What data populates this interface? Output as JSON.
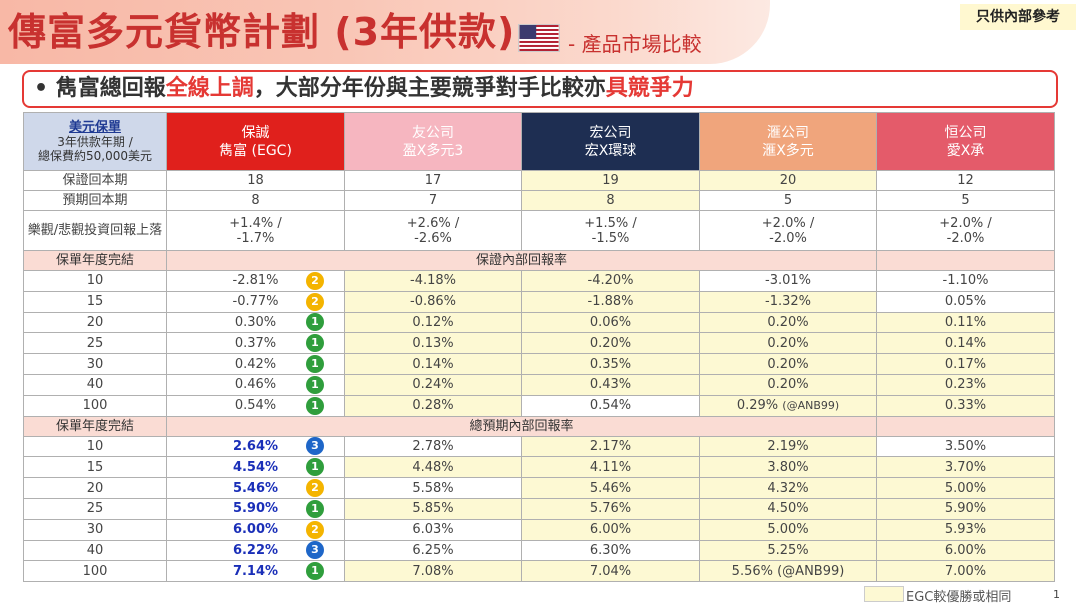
{
  "header": {
    "title": "傳富多元貨幣計劃 (3年供款)",
    "subtitle": "- 產品市場比較",
    "flag_icon": "us-flag-icon",
    "internal_tag": "只供內部參考"
  },
  "banner": {
    "bullet": "•",
    "text_1": "雋富總回報",
    "highlight_1": "全線上調",
    "text_2": "，大部分年份與主要競爭對手比較亦",
    "highlight_2": "具競爭力"
  },
  "table": {
    "corner": {
      "line1": "美元保單",
      "line2": "3年供款年期 /",
      "line3": "總保費約50,000美元"
    },
    "companies": [
      {
        "line1": "保誠",
        "line2": "雋富 (EGC)",
        "color": "#e0201c"
      },
      {
        "line1": "友公司",
        "line2": "盈X多元3",
        "color": "#f6b6c0"
      },
      {
        "line1": "宏公司",
        "line2": "宏X環球",
        "color": "#1e2e52"
      },
      {
        "line1": "滙公司",
        "line2": "滙X多元",
        "color": "#f0a57c"
      },
      {
        "line1": "恒公司",
        "line2": "愛X承",
        "color": "#e45b6a"
      }
    ],
    "info_rows": [
      {
        "label": "保證回本期",
        "values": [
          "18",
          "17",
          "19",
          "20",
          "12"
        ]
      },
      {
        "label": "預期回本期",
        "values": [
          "8",
          "7",
          "8",
          "5",
          "5"
        ]
      },
      {
        "label": "樂觀/悲觀投資回報上落",
        "values": [
          [
            "+1.4% /",
            "-1.7%"
          ],
          [
            "+2.6% /",
            "-2.6%"
          ],
          [
            "+1.5% /",
            "-1.5%"
          ],
          [
            "+2.0% /",
            "-2.0%"
          ],
          [
            "+2.0% /",
            "-2.0%"
          ]
        ]
      }
    ],
    "section1": {
      "label": "保單年度完結",
      "title": "保證內部回報率",
      "rows": [
        {
          "year": "10",
          "values": [
            "-2.81%",
            "-4.18%",
            "-4.20%",
            "-3.01%",
            "-1.10%"
          ],
          "rank": "2"
        },
        {
          "year": "15",
          "values": [
            "-0.77%",
            "-0.86%",
            "-1.88%",
            "-1.32%",
            "0.05%"
          ],
          "rank": "2"
        },
        {
          "year": "20",
          "values": [
            "0.30%",
            "0.12%",
            "0.06%",
            "0.20%",
            "0.11%"
          ],
          "rank": "1"
        },
        {
          "year": "25",
          "values": [
            "0.37%",
            "0.13%",
            "0.20%",
            "0.20%",
            "0.14%"
          ],
          "rank": "1"
        },
        {
          "year": "30",
          "values": [
            "0.42%",
            "0.14%",
            "0.35%",
            "0.20%",
            "0.17%"
          ],
          "rank": "1"
        },
        {
          "year": "40",
          "values": [
            "0.46%",
            "0.24%",
            "0.43%",
            "0.20%",
            "0.23%"
          ],
          "rank": "1"
        },
        {
          "year": "100",
          "values": [
            "0.54%",
            "0.28%",
            "0.54%",
            "0.29%",
            "0.33%"
          ],
          "rank": "1",
          "note": "(@ANB99)"
        }
      ]
    },
    "section2": {
      "label": "保單年度完結",
      "title": "總預期內部回報率",
      "rows": [
        {
          "year": "10",
          "values": [
            "2.64%",
            "2.78%",
            "2.17%",
            "2.19%",
            "3.50%"
          ],
          "rank": "3"
        },
        {
          "year": "15",
          "values": [
            "4.54%",
            "4.48%",
            "4.11%",
            "3.80%",
            "3.70%"
          ],
          "rank": "1"
        },
        {
          "year": "20",
          "values": [
            "5.46%",
            "5.58%",
            "5.46%",
            "4.32%",
            "5.00%"
          ],
          "rank": "2"
        },
        {
          "year": "25",
          "values": [
            "5.90%",
            "5.85%",
            "5.76%",
            "4.50%",
            "5.90%"
          ],
          "rank": "1"
        },
        {
          "year": "30",
          "values": [
            "6.00%",
            "6.03%",
            "6.00%",
            "5.00%",
            "5.93%"
          ],
          "rank": "2"
        },
        {
          "year": "40",
          "values": [
            "6.22%",
            "6.25%",
            "6.30%",
            "5.25%",
            "6.00%"
          ],
          "rank": "3"
        },
        {
          "year": "100",
          "values": [
            "7.14%",
            "7.08%",
            "7.04%",
            "5.56% (@ANB99)",
            "7.00%"
          ],
          "rank": "1"
        }
      ]
    }
  },
  "legend": {
    "text": "EGC較優勝或相同",
    "color": "#fdf9d3"
  },
  "page_number": "1",
  "colors": {
    "accent": "#c8312f",
    "banner_border": "#e53935",
    "rank1": "#2f9e3c",
    "rank2": "#f4b400",
    "rank3": "#1e66c8"
  }
}
